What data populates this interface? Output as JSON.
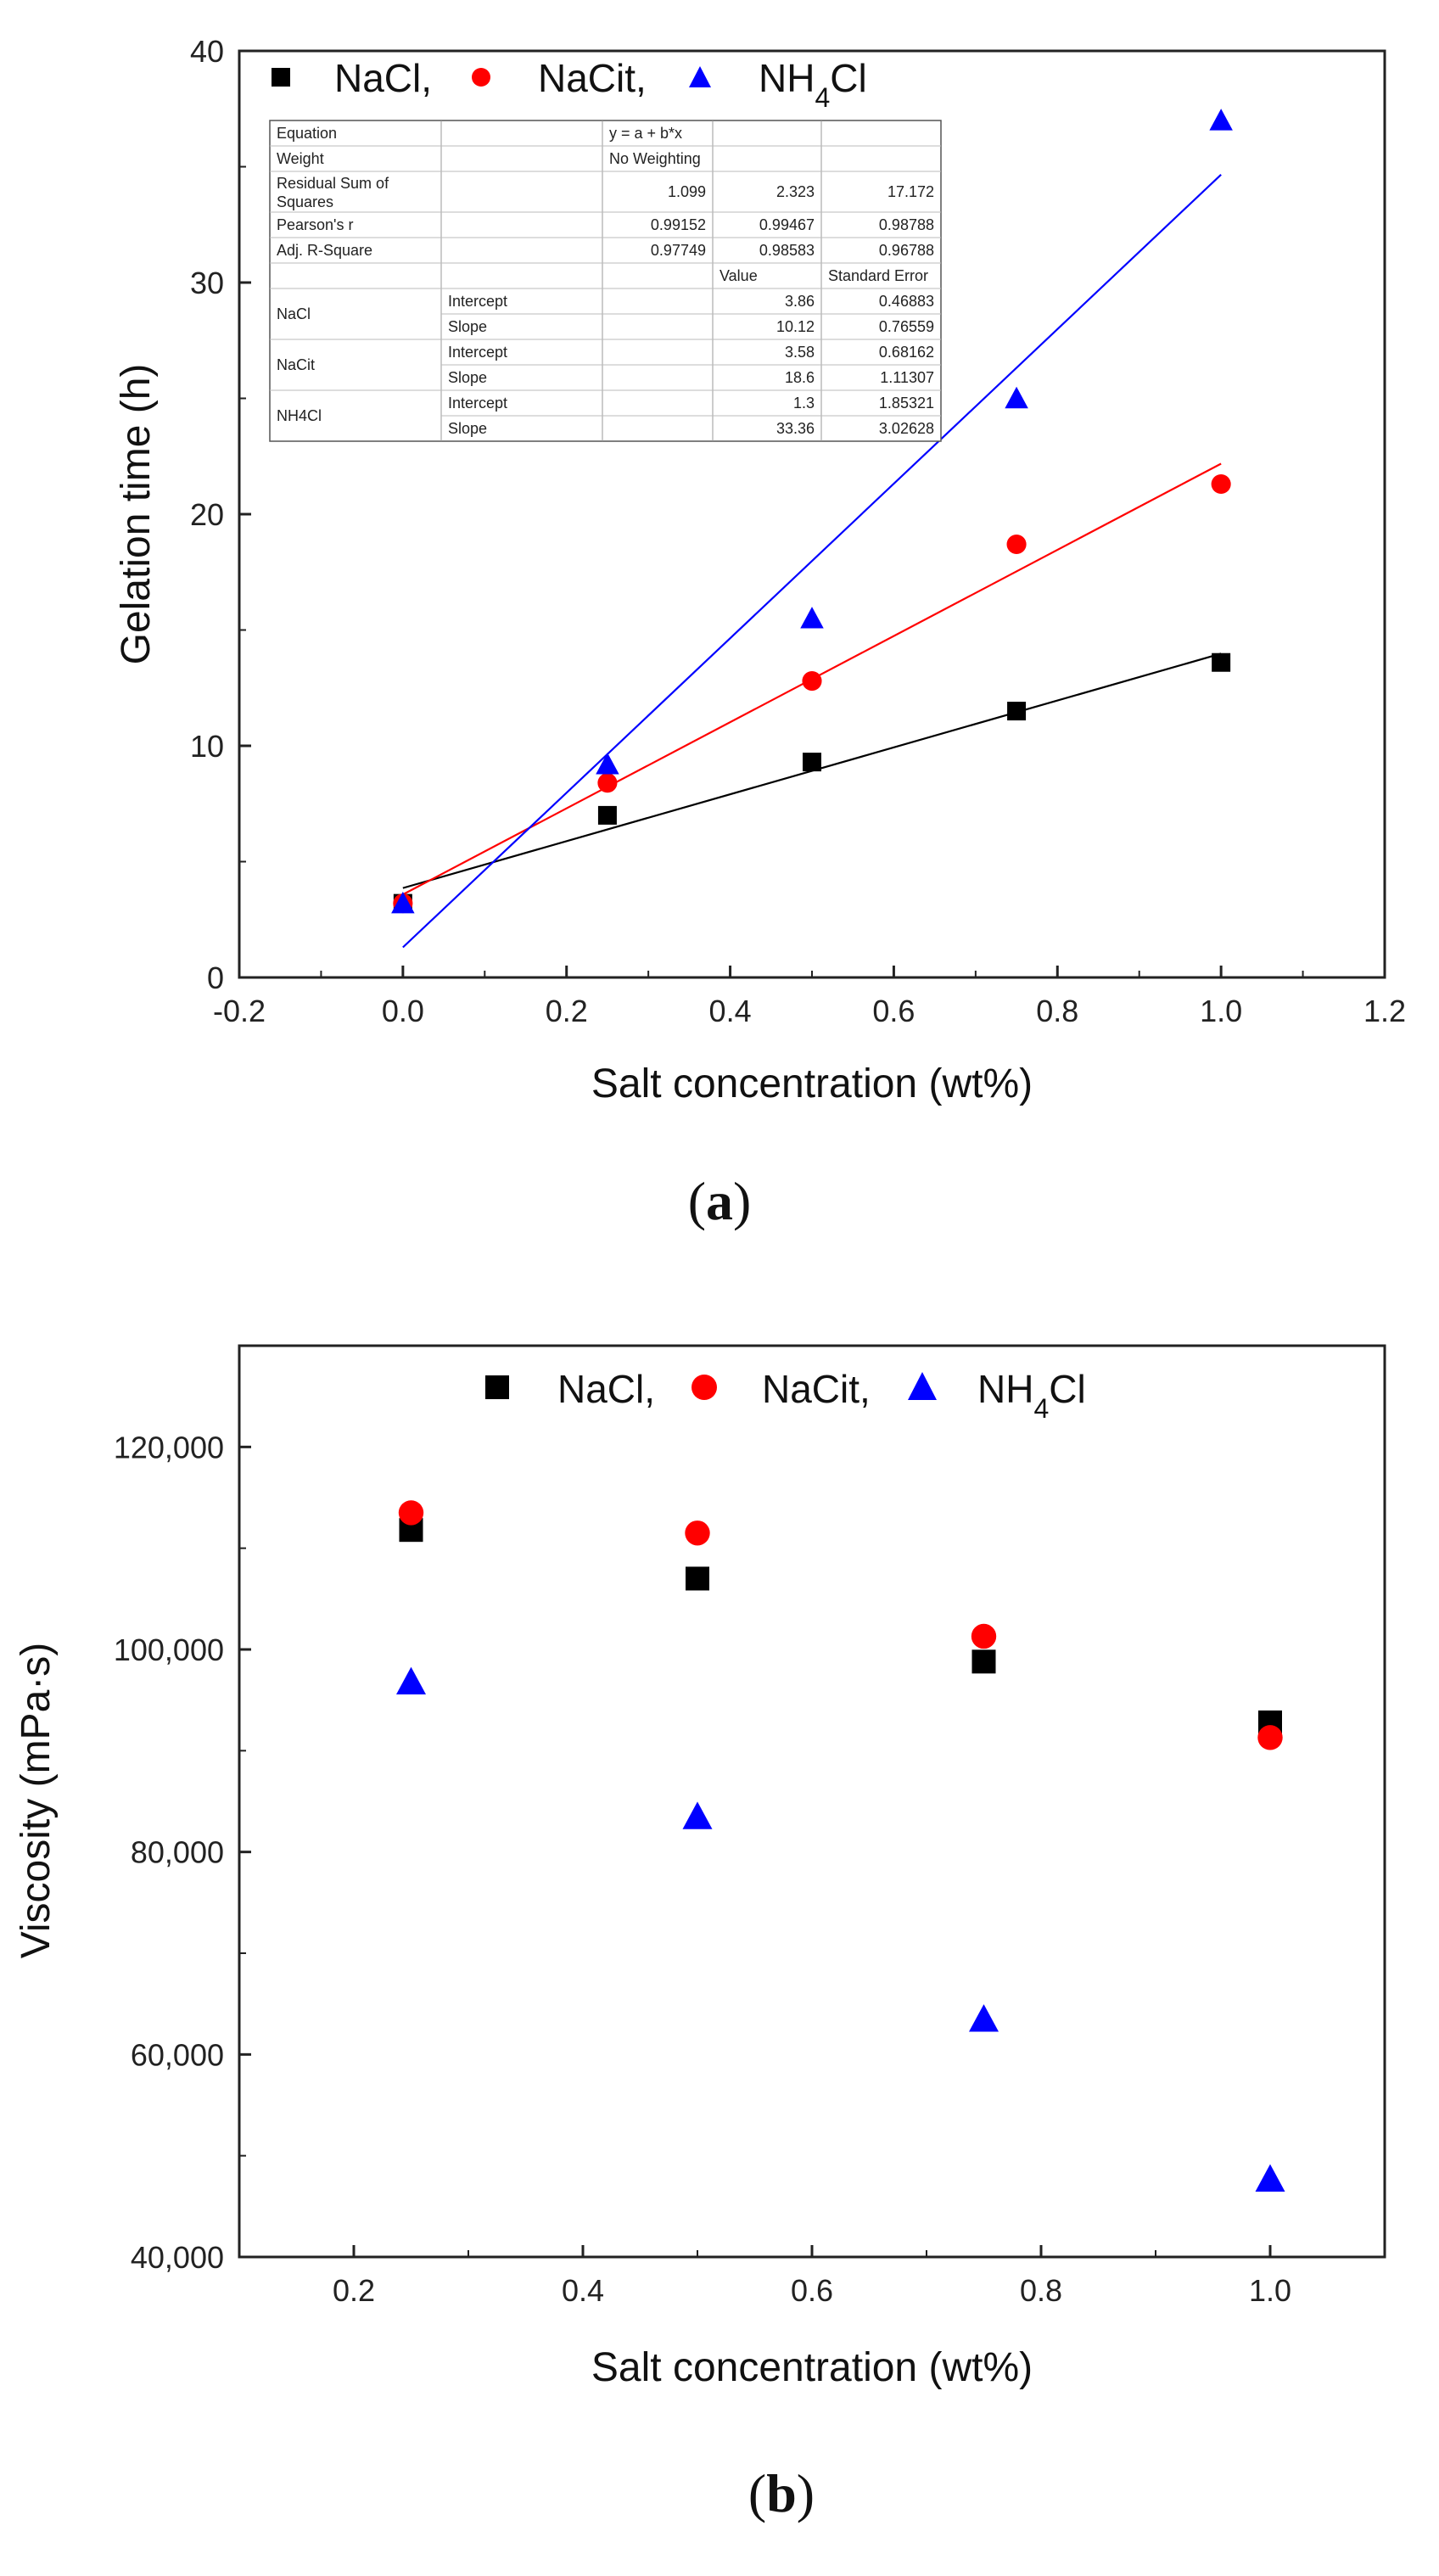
{
  "chart_data": [
    {
      "type": "scatter",
      "panel": "a",
      "caption_label": "a",
      "xlabel": "Salt concentration (wt%)",
      "ylabel": "Gelation time (h)",
      "xlim": [
        -0.2,
        1.2
      ],
      "ylim": [
        0,
        40
      ],
      "xticks": [
        "-0.2",
        "0.0",
        "0.2",
        "0.4",
        "0.6",
        "0.8",
        "1.0",
        "1.2"
      ],
      "yticks": [
        "0",
        "10",
        "20",
        "30",
        "40"
      ],
      "legend": [
        "NaCl,",
        "NaCit,",
        "NH4Cl"
      ],
      "series": [
        {
          "name": "NaCl",
          "color": "#000000",
          "marker": "square",
          "x": [
            0.0,
            0.25,
            0.5,
            0.75,
            1.0
          ],
          "y": [
            3.2,
            7.0,
            9.3,
            11.5,
            13.6
          ],
          "fit": {
            "intercept": 3.86,
            "slope": 10.12
          }
        },
        {
          "name": "NaCit",
          "color": "#ff0000",
          "marker": "circle",
          "x": [
            0.0,
            0.25,
            0.5,
            0.75,
            1.0
          ],
          "y": [
            3.2,
            8.4,
            12.8,
            18.7,
            21.3
          ],
          "fit": {
            "intercept": 3.58,
            "slope": 18.6
          }
        },
        {
          "name": "NH4Cl",
          "color": "#0000ff",
          "marker": "triangle",
          "x": [
            0.0,
            0.25,
            0.5,
            0.75,
            1.0
          ],
          "y": [
            3.2,
            9.2,
            15.5,
            25.0,
            37.0
          ],
          "fit": {
            "intercept": 1.3,
            "slope": 33.36
          }
        }
      ],
      "fit_table": {
        "rows": [
          [
            "Equation",
            "",
            "y = a + b*x",
            "",
            ""
          ],
          [
            "Weight",
            "",
            "No Weighting",
            "",
            ""
          ],
          [
            "Residual Sum of Squares",
            "",
            "1.099",
            "2.323",
            "17.172"
          ],
          [
            "Pearson's r",
            "",
            "0.99152",
            "0.99467",
            "0.98788"
          ],
          [
            "Adj. R-Square",
            "",
            "0.97749",
            "0.98583",
            "0.96788"
          ],
          [
            "",
            "",
            "",
            "Value",
            "Standard Error"
          ],
          [
            "NaCl",
            "Intercept",
            "",
            "3.86",
            "0.46883"
          ],
          [
            "",
            "Slope",
            "",
            "10.12",
            "0.76559"
          ],
          [
            "NaCit",
            "Intercept",
            "",
            "3.58",
            "0.68162"
          ],
          [
            "",
            "Slope",
            "",
            "18.6",
            "1.11307"
          ],
          [
            "NH4Cl",
            "Intercept",
            "",
            "1.3",
            "1.85321"
          ],
          [
            "",
            "Slope",
            "",
            "33.36",
            "3.02628"
          ]
        ]
      }
    },
    {
      "type": "scatter",
      "panel": "b",
      "caption_label": "b",
      "xlabel": "Salt concentration (wt%)",
      "ylabel": "Viscosity (mPa·s)",
      "xlim": [
        0.1,
        1.1
      ],
      "ylim": [
        40000,
        130000
      ],
      "xticks": [
        "0.2",
        "0.4",
        "0.6",
        "0.8",
        "1.0"
      ],
      "yticks": [
        "40,000",
        "60,000",
        "80,000",
        "100,000",
        "120,000"
      ],
      "legend": [
        "NaCl,",
        "NaCit,",
        "NH4Cl"
      ],
      "series": [
        {
          "name": "NaCl",
          "color": "#000000",
          "marker": "square",
          "x": [
            0.25,
            0.5,
            0.75,
            1.0
          ],
          "y": [
            111800,
            107000,
            98800,
            92800
          ]
        },
        {
          "name": "NaCit",
          "color": "#ff0000",
          "marker": "circle",
          "x": [
            0.25,
            0.5,
            0.75,
            1.0
          ],
          "y": [
            113500,
            111500,
            101300,
            91300
          ]
        },
        {
          "name": "NH4Cl",
          "color": "#0000ff",
          "marker": "triangle",
          "x": [
            0.25,
            0.5,
            0.75,
            1.0
          ],
          "y": [
            96800,
            83500,
            63500,
            47700
          ]
        }
      ]
    }
  ]
}
